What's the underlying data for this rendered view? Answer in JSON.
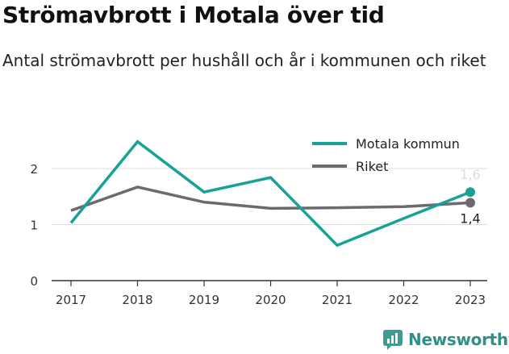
{
  "title": "Strömavbrott i Motala över tid",
  "subtitle": "Antal strömavbrott per hushåll och år i kommunen och riket",
  "brand": "Newsworthy",
  "chart_data": {
    "type": "line",
    "x": [
      "2017",
      "2018",
      "2019",
      "2020",
      "2021",
      "2022",
      "2023"
    ],
    "series": [
      {
        "name": "Motala kommun",
        "color": "#18a197",
        "values": [
          1.03,
          2.48,
          1.58,
          1.84,
          0.63,
          1.11,
          1.58
        ]
      },
      {
        "name": "Riket",
        "color": "#6b6a6f",
        "values": [
          1.25,
          1.67,
          1.4,
          1.29,
          1.3,
          1.32,
          1.39
        ]
      }
    ],
    "yticks": [
      "0",
      "1",
      "2"
    ],
    "ylim": [
      0,
      2.6
    ],
    "grid": true,
    "legend": "top-right",
    "end_labels": [
      "1,6",
      "1,4"
    ]
  }
}
